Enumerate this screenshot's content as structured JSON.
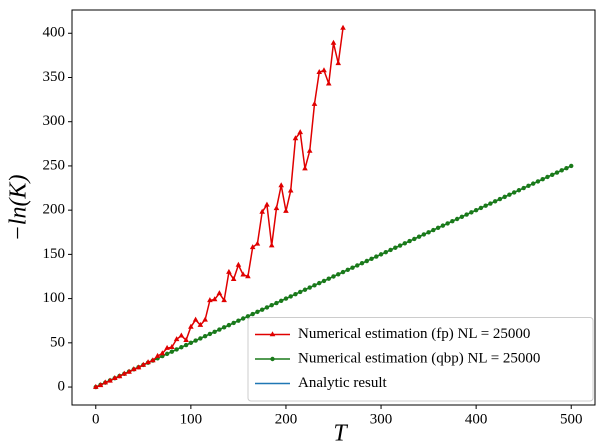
{
  "chart_data": {
    "type": "line",
    "xlabel": "T",
    "ylabel": "−ln(K)",
    "xlim": [
      -25,
      525
    ],
    "ylim": [
      -20.3,
      426.3
    ],
    "xticks": [
      0,
      100,
      200,
      300,
      400,
      500
    ],
    "yticks": [
      0,
      50,
      100,
      150,
      200,
      250,
      300,
      350,
      400
    ],
    "legend": "lower right",
    "series": [
      {
        "name": "Numerical estimation (fp) NL = 25000",
        "color": "#e00000",
        "marker": "triangle",
        "x": [
          0,
          5,
          10,
          15,
          20,
          25,
          30,
          35,
          40,
          45,
          50,
          55,
          60,
          65,
          70,
          75,
          80,
          85,
          90,
          95,
          100,
          105,
          110,
          115,
          120,
          125,
          130,
          135,
          140,
          145,
          150,
          155,
          160,
          165,
          170,
          175,
          180,
          185,
          190,
          195,
          200,
          205,
          210,
          215,
          220,
          225,
          230,
          235,
          240,
          245,
          250,
          255,
          260
        ],
        "values": [
          0,
          2,
          5,
          7,
          10,
          12,
          15,
          17,
          20,
          22,
          25,
          28,
          30,
          35,
          38,
          44,
          45,
          54,
          58,
          53,
          68,
          76,
          70,
          76,
          98,
          99,
          106,
          98,
          130,
          122,
          138,
          127,
          125,
          158,
          162,
          198,
          206,
          160,
          202,
          228,
          199,
          222,
          281,
          288,
          247,
          267,
          320,
          356,
          358,
          343,
          389,
          366,
          406
        ]
      },
      {
        "name": "Numerical estimation (qbp) NL = 25000",
        "color": "#1a7a1a",
        "marker": "circle",
        "x": [
          0,
          5,
          10,
          15,
          20,
          25,
          30,
          35,
          40,
          45,
          50,
          55,
          60,
          65,
          70,
          75,
          80,
          85,
          90,
          95,
          100,
          105,
          110,
          115,
          120,
          125,
          130,
          135,
          140,
          145,
          150,
          155,
          160,
          165,
          170,
          175,
          180,
          185,
          190,
          195,
          200,
          205,
          210,
          215,
          220,
          225,
          230,
          235,
          240,
          245,
          250,
          255,
          260,
          265,
          270,
          275,
          280,
          285,
          290,
          295,
          300,
          305,
          310,
          315,
          320,
          325,
          330,
          335,
          340,
          345,
          350,
          355,
          360,
          365,
          370,
          375,
          380,
          385,
          390,
          395,
          400,
          405,
          410,
          415,
          420,
          425,
          430,
          435,
          440,
          445,
          450,
          455,
          460,
          465,
          470,
          475,
          480,
          485,
          490,
          495,
          500
        ],
        "values": [
          0,
          2.5,
          5,
          7.5,
          10,
          12.5,
          15,
          17.5,
          20,
          22.5,
          25,
          27.5,
          30,
          32.5,
          35,
          37.5,
          40,
          42.5,
          45,
          47.5,
          50,
          52.5,
          55,
          57.5,
          60,
          62.5,
          65,
          67.5,
          70,
          72.5,
          75,
          77.5,
          80,
          82.5,
          85,
          87.5,
          90,
          92.5,
          95,
          97.5,
          100,
          102.5,
          105,
          107.5,
          110,
          112.5,
          115,
          117.5,
          120,
          122.5,
          125,
          127.5,
          130,
          132.5,
          135,
          137.5,
          140,
          142.5,
          145,
          147.5,
          150,
          152.5,
          155,
          157.5,
          160,
          162.5,
          165,
          167.5,
          170,
          172.5,
          175,
          177.5,
          180,
          182.5,
          185,
          187.5,
          190,
          192.5,
          195,
          197.5,
          200,
          202.5,
          205,
          207.5,
          210,
          212.5,
          215,
          217.5,
          220,
          222.5,
          225,
          227.5,
          230,
          232.5,
          235,
          237.5,
          240,
          242.5,
          245,
          247.5,
          250
        ]
      },
      {
        "name": "Analytic result",
        "color": "#1f77b4",
        "marker": "none",
        "x": [
          0,
          500
        ],
        "values": [
          0,
          250
        ]
      }
    ]
  }
}
